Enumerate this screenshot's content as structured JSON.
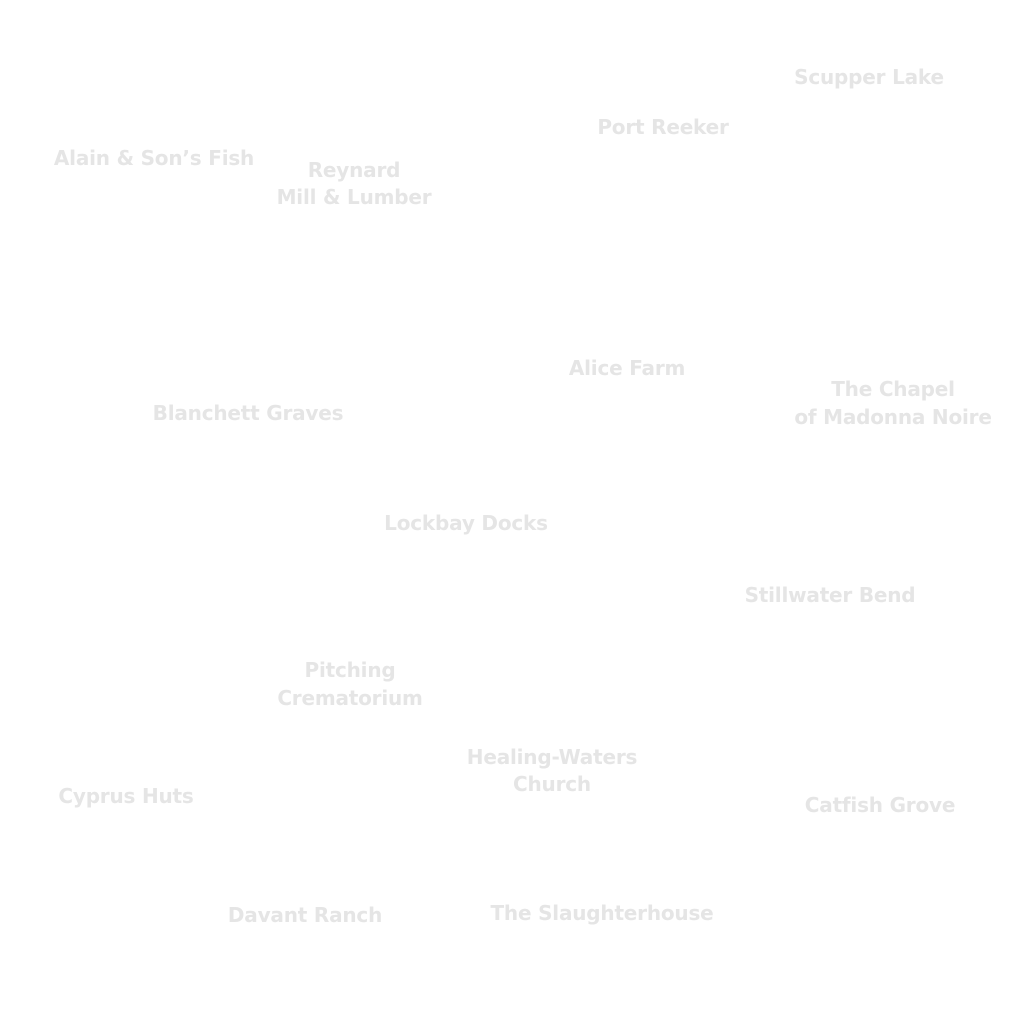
{
  "map": {
    "label_color": "#e5e5e5",
    "background": "#ffffff",
    "locations": [
      {
        "id": "scupper-lake",
        "lines": [
          "Scupper Lake"
        ]
      },
      {
        "id": "port-reeker",
        "lines": [
          "Port Reeker"
        ]
      },
      {
        "id": "alain-sons-fish",
        "lines": [
          "Alain & Son’s Fish"
        ]
      },
      {
        "id": "reynard-mill-lumber",
        "lines": [
          "Reynard",
          "Mill & Lumber"
        ]
      },
      {
        "id": "alice-farm",
        "lines": [
          "Alice Farm"
        ]
      },
      {
        "id": "chapel-madonna-noire",
        "lines": [
          "The Chapel",
          "of Madonna Noire"
        ]
      },
      {
        "id": "blanchett-graves",
        "lines": [
          "Blanchett Graves"
        ]
      },
      {
        "id": "lockbay-docks",
        "lines": [
          "Lockbay Docks"
        ]
      },
      {
        "id": "stillwater-bend",
        "lines": [
          "Stillwater Bend"
        ]
      },
      {
        "id": "pitching-crematorium",
        "lines": [
          "Pitching",
          "Crematorium"
        ]
      },
      {
        "id": "healing-waters-church",
        "lines": [
          "Healing-Waters",
          "Church"
        ]
      },
      {
        "id": "cyprus-huts",
        "lines": [
          "Cyprus Huts"
        ]
      },
      {
        "id": "catfish-grove",
        "lines": [
          "Catfish Grove"
        ]
      },
      {
        "id": "davant-ranch",
        "lines": [
          "Davant Ranch"
        ]
      },
      {
        "id": "the-slaughterhouse",
        "lines": [
          "The Slaughterhouse"
        ]
      }
    ]
  }
}
